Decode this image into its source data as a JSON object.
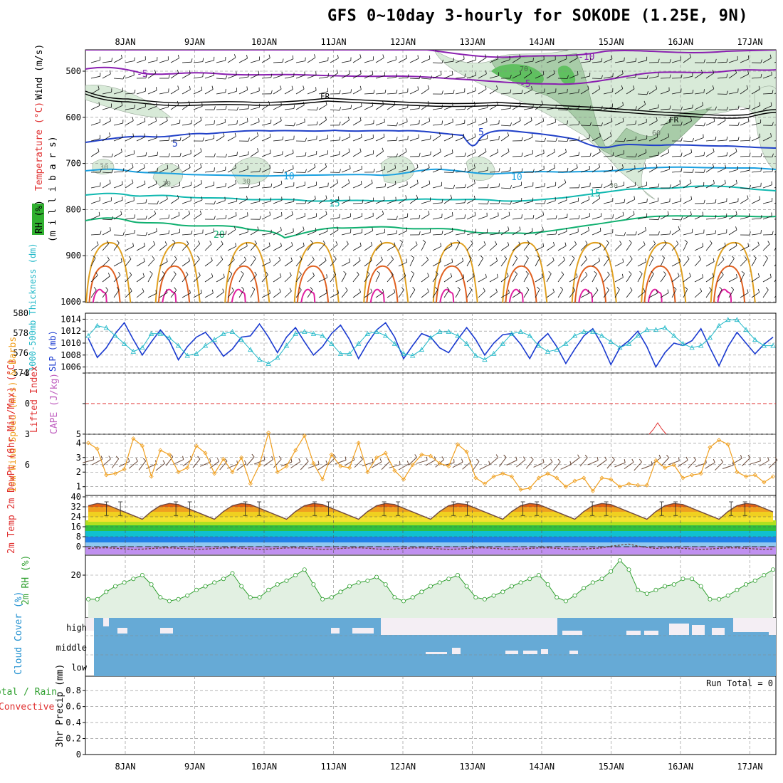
{
  "title": "GFS 0~10day 3-hourly for SOKODE (1.25E, 9N)",
  "dates": [
    "8JAN",
    "9JAN",
    "10JAN",
    "11JAN",
    "12JAN",
    "13JAN",
    "14JAN",
    "15JAN",
    "16JAN",
    "17JAN"
  ],
  "colors": {
    "grid": "#888888",
    "temp_neg": "#8a1fb0",
    "temp_zero": "#000000",
    "temp_5": "#2040c8",
    "temp_10": "#1aa0e0",
    "temp_15": "#10b8b0",
    "temp_20": "#10b070",
    "temp_warm": "#e0a020",
    "temp_hot": "#e06020",
    "temp_hotter": "#e020a0",
    "rh_fill": "#d8ead8",
    "rh_fill_dark": "#a8cca8",
    "rh_fill_max": "#60c060",
    "slp": "#1a3ad0",
    "thickness": "#20b8c8",
    "li": "#e03030",
    "cape": "#c060c0",
    "wind10": "#f0a020",
    "barb": "#6a4a3a",
    "dewpt": "#704a40",
    "rh2m": "#30a030",
    "rh2m_fill": "#e2f0e2",
    "cloud": "#66aad6",
    "cloud_clear": "#f4eef4",
    "precip_total": "#30a030",
    "precip_conv": "#e03030"
  },
  "panels": {
    "upper": {
      "ylabel_parts": [
        "RH (%)",
        "Temperature (°C)",
        "Wind (m/s)"
      ],
      "ylabel2": "(m i l l i b a r s)",
      "ticks": [
        "500",
        "600",
        "700",
        "800",
        "900",
        "1000"
      ],
      "contour_labels": {
        "m10": "-10",
        "m5": "-5",
        "m5b": "-5",
        "fr1": "FR",
        "fr2": "FR",
        "p5a": "5",
        "p5b": "5",
        "p10a": "10",
        "p10b": "10",
        "p15a": "15",
        "p15b": "15",
        "p20": "20",
        "rh30a": "30",
        "rh30b": "30",
        "rh30c": "30",
        "rh30d": "30",
        "rh60": "60",
        "rh70": "70"
      }
    },
    "slp": {
      "ylabel_left": "1000-500mb Thickness (dm)",
      "ylabel_right": "SLP (mb)",
      "ticks_left": [
        "580",
        "578",
        "576",
        "574"
      ],
      "ticks_right": [
        "1014",
        "1012",
        "1010",
        "1008",
        "1006"
      ]
    },
    "cape": {
      "ylabel_li": "Lifted Index",
      "ylabel_cape": "CAPE (J/kg)",
      "ticks": [
        "-3",
        "0",
        "3",
        "6"
      ],
      "tick_cape": "5"
    },
    "wind10": {
      "ylabel": "10m Wind Speed (m/s) & Barbs",
      "ticks": [
        "4",
        "3",
        "2",
        "1"
      ]
    },
    "temp2m": {
      "ylabel": "2m Temp 2m DewPt (6hr Min/Max) (°C)",
      "ticks": [
        "40",
        "32",
        "24",
        "16",
        "8",
        "0"
      ]
    },
    "rh2m": {
      "ylabel": "2m RH (%)",
      "ticks": [
        "20"
      ]
    },
    "cloud": {
      "ylabel": "Cloud Cover (%)",
      "levels": [
        "high",
        "middle",
        "low"
      ]
    },
    "precip": {
      "ylabel_total": "Total / Rain",
      "ylabel_conv": "Convective",
      "ylabel": "3hr Precip (mm)",
      "ticks": [
        "0.8",
        "0.6",
        "0.4",
        "0.2",
        "0"
      ],
      "run_total": "Run Total = 0"
    }
  },
  "chart_data": [
    {
      "type": "line",
      "title": "1000-500mb Thickness (dm) and SLP (mb)",
      "x": [
        "7JAN18",
        "7JAN21",
        "8JAN00",
        "8JAN03",
        "8JAN06",
        "8JAN09",
        "8JAN12",
        "8JAN15",
        "8JAN18",
        "8JAN21",
        "9JAN00",
        "9JAN03",
        "9JAN06",
        "9JAN09",
        "9JAN12",
        "9JAN15",
        "9JAN18",
        "9JAN21",
        "10JAN00",
        "10JAN03",
        "10JAN06",
        "10JAN09",
        "10JAN12",
        "10JAN15",
        "10JAN18",
        "10JAN21",
        "11JAN00",
        "11JAN03",
        "11JAN06",
        "11JAN09",
        "11JAN12",
        "11JAN15",
        "11JAN18",
        "11JAN21",
        "12JAN00",
        "12JAN03",
        "12JAN06",
        "12JAN09",
        "12JAN12",
        "12JAN15",
        "12JAN18",
        "12JAN21",
        "13JAN00",
        "13JAN03",
        "13JAN06",
        "13JAN09",
        "13JAN12",
        "13JAN15",
        "13JAN18",
        "13JAN21",
        "14JAN00",
        "14JAN03",
        "14JAN06",
        "14JAN09",
        "14JAN12",
        "14JAN15",
        "14JAN18",
        "14JAN21",
        "15JAN00",
        "15JAN03",
        "15JAN06",
        "15JAN09",
        "15JAN12",
        "15JAN15",
        "15JAN18",
        "15JAN21",
        "16JAN00",
        "16JAN03",
        "16JAN06",
        "16JAN09",
        "16JAN12",
        "16JAN15",
        "16JAN18",
        "16JAN21",
        "17JAN00",
        "17JAN03",
        "17JAN06"
      ],
      "series": [
        {
          "name": "1000-500mb Thickness (dm)",
          "axis": "left",
          "values": [
            577.6,
            578.6,
            578.4,
            577.6,
            576.8,
            576.0,
            576.4,
            577.8,
            577.8,
            577.4,
            576.6,
            575.6,
            575.8,
            576.6,
            577.2,
            577.8,
            578.0,
            577.2,
            576.2,
            575.2,
            574.8,
            575.4,
            576.6,
            577.8,
            578.0,
            577.8,
            577.6,
            576.8,
            575.8,
            575.8,
            576.8,
            577.8,
            578.0,
            577.6,
            576.8,
            575.8,
            575.6,
            576.2,
            577.4,
            578.0,
            578.0,
            577.6,
            576.8,
            575.6,
            575.2,
            575.8,
            576.8,
            577.8,
            578.0,
            577.6,
            576.6,
            576.0,
            576.2,
            576.8,
            577.6,
            578.0,
            578.0,
            577.6,
            577.0,
            576.4,
            576.8,
            577.6,
            578.2,
            578.2,
            578.4,
            577.6,
            576.8,
            576.4,
            576.6,
            577.4,
            578.6,
            579.2,
            579.2,
            578.2,
            577.2,
            576.6,
            576.6
          ]
        },
        {
          "name": "SLP (mb)",
          "axis": "right",
          "values": [
            1010.8,
            1007.6,
            1009.2,
            1011.6,
            1013.4,
            1010.6,
            1008.0,
            1010.2,
            1012.2,
            1010.4,
            1007.2,
            1009.4,
            1011.0,
            1011.8,
            1010.0,
            1007.8,
            1009.0,
            1011.0,
            1011.2,
            1013.2,
            1011.0,
            1008.4,
            1011.0,
            1012.6,
            1010.2,
            1008.0,
            1009.4,
            1011.6,
            1013.0,
            1010.6,
            1007.4,
            1010.0,
            1012.2,
            1013.4,
            1011.0,
            1007.4,
            1009.6,
            1011.6,
            1011.0,
            1009.2,
            1008.4,
            1010.6,
            1012.6,
            1010.6,
            1008.0,
            1010.0,
            1011.4,
            1011.6,
            1009.8,
            1007.4,
            1010.2,
            1011.6,
            1009.4,
            1006.6,
            1009.0,
            1011.2,
            1012.4,
            1009.8,
            1006.4,
            1009.2,
            1010.4,
            1012.0,
            1009.4,
            1006.0,
            1008.4,
            1010.0,
            1009.6,
            1010.4,
            1012.4,
            1009.2,
            1006.2,
            1009.4,
            1011.8,
            1010.0,
            1008.2,
            1009.8,
            1011.0
          ]
        }
      ],
      "ylim_left": [
        574,
        580
      ],
      "ylim_right": [
        1005,
        1015
      ]
    },
    {
      "type": "line",
      "title": "10m Wind Speed (m/s)",
      "x": [
        "7JAN18",
        "7JAN21",
        "8JAN00",
        "8JAN03",
        "8JAN06",
        "8JAN09",
        "8JAN12",
        "8JAN15",
        "8JAN18",
        "8JAN21",
        "9JAN00",
        "9JAN03",
        "9JAN06",
        "9JAN09",
        "9JAN12",
        "9JAN15",
        "9JAN18",
        "9JAN21",
        "10JAN00",
        "10JAN03",
        "10JAN06",
        "10JAN09",
        "10JAN12",
        "10JAN15",
        "10JAN18",
        "10JAN21",
        "11JAN00",
        "11JAN03",
        "11JAN06",
        "11JAN09",
        "11JAN12",
        "11JAN15",
        "11JAN18",
        "11JAN21",
        "12JAN00",
        "12JAN03",
        "12JAN06",
        "12JAN09",
        "12JAN12",
        "12JAN15",
        "12JAN18",
        "12JAN21",
        "13JAN00",
        "13JAN03",
        "13JAN06",
        "13JAN09",
        "13JAN12",
        "13JAN15",
        "13JAN18",
        "13JAN21",
        "14JAN00",
        "14JAN03",
        "14JAN06",
        "14JAN09",
        "14JAN12",
        "14JAN15",
        "14JAN18",
        "14JAN21",
        "15JAN00",
        "15JAN03",
        "15JAN06",
        "15JAN09",
        "15JAN12",
        "15JAN15",
        "15JAN18",
        "15JAN21",
        "16JAN00",
        "16JAN03",
        "16JAN06",
        "16JAN09",
        "16JAN12",
        "16JAN15",
        "16JAN18",
        "16JAN21",
        "17JAN00",
        "17JAN03",
        "17JAN06"
      ],
      "values": [
        4.0,
        3.6,
        1.8,
        1.9,
        2.2,
        4.3,
        3.8,
        1.7,
        3.5,
        3.2,
        2.0,
        2.3,
        3.8,
        3.3,
        1.9,
        2.9,
        2.0,
        3.0,
        1.2,
        2.5,
        4.7,
        2.0,
        2.4,
        3.5,
        4.5,
        2.6,
        1.5,
        3.2,
        2.4,
        2.3,
        4.0,
        2.0,
        3.0,
        3.3,
        2.1,
        1.5,
        2.5,
        3.2,
        3.1,
        2.6,
        2.4,
        3.9,
        3.4,
        1.6,
        1.2,
        1.7,
        1.9,
        1.7,
        0.8,
        0.9,
        1.6,
        1.9,
        1.6,
        1.0,
        1.4,
        1.6,
        0.7,
        1.6,
        1.5,
        1.0,
        1.2,
        1.1,
        1.1,
        2.8,
        2.3,
        2.5,
        1.6,
        1.8,
        1.9,
        3.7,
        4.2,
        3.9,
        2.0,
        1.7,
        1.8,
        1.3,
        1.7
      ],
      "ylim": [
        0.4,
        4.6
      ]
    },
    {
      "type": "line",
      "title": "2m RH (%)",
      "x": [
        "7JAN18",
        "7JAN21",
        "8JAN00",
        "8JAN03",
        "8JAN06",
        "8JAN09",
        "8JAN12",
        "8JAN15",
        "8JAN18",
        "8JAN21",
        "9JAN00",
        "9JAN03",
        "9JAN06",
        "9JAN09",
        "9JAN12",
        "9JAN15",
        "9JAN18",
        "9JAN21",
        "10JAN00",
        "10JAN03",
        "10JAN06",
        "10JAN09",
        "10JAN12",
        "10JAN15",
        "10JAN18",
        "10JAN21",
        "11JAN00",
        "11JAN03",
        "11JAN06",
        "11JAN09",
        "11JAN12",
        "11JAN15",
        "11JAN18",
        "11JAN21",
        "12JAN00",
        "12JAN03",
        "12JAN06",
        "12JAN09",
        "12JAN12",
        "12JAN15",
        "12JAN18",
        "12JAN21",
        "13JAN00",
        "13JAN03",
        "13JAN06",
        "13JAN09",
        "13JAN12",
        "13JAN15",
        "13JAN18",
        "13JAN21",
        "14JAN00",
        "14JAN03",
        "14JAN06",
        "14JAN09",
        "14JAN12",
        "14JAN15",
        "14JAN18",
        "14JAN21",
        "15JAN00",
        "15JAN03",
        "15JAN06",
        "15JAN09",
        "15JAN12",
        "15JAN15",
        "15JAN18",
        "15JAN21",
        "16JAN00",
        "16JAN03",
        "16JAN06",
        "16JAN09",
        "16JAN12",
        "16JAN15",
        "16JAN18",
        "16JAN21",
        "17JAN00",
        "17JAN03",
        "17JAN06"
      ],
      "values": [
        7,
        7,
        11,
        14,
        16,
        18,
        20,
        15,
        8,
        6,
        7,
        9,
        12,
        14,
        16,
        18,
        21,
        14,
        8,
        8,
        12,
        15,
        17,
        20,
        23,
        15,
        7,
        8,
        11,
        14,
        16,
        17,
        19,
        15,
        8,
        6,
        8,
        11,
        14,
        16,
        18,
        20,
        14,
        8,
        7,
        9,
        11,
        14,
        16,
        18,
        20,
        15,
        8,
        6,
        9,
        13,
        16,
        18,
        22,
        28,
        23,
        12,
        10,
        12,
        14,
        15,
        18,
        18,
        14,
        7,
        7,
        9,
        12,
        15,
        17,
        20,
        23
      ]
    }
  ]
}
